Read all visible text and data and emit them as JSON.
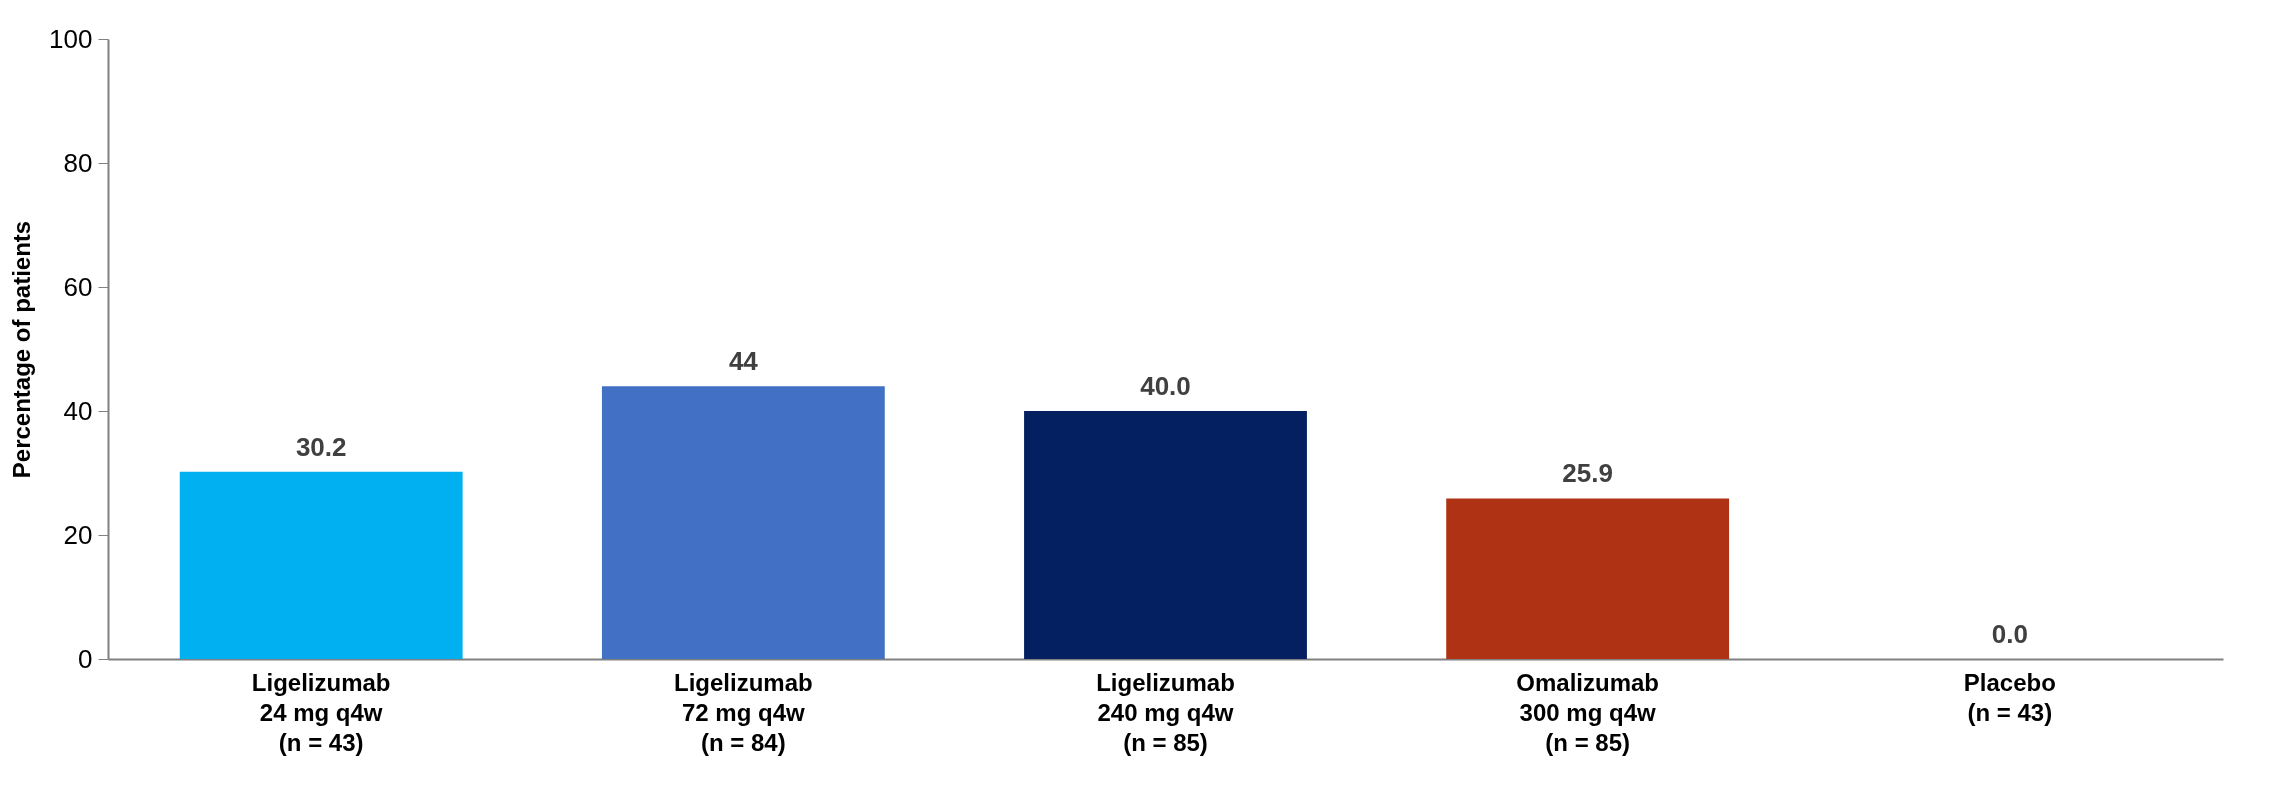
{
  "chart_data": {
    "type": "bar",
    "ylabel": "Percentage of patients",
    "categories": [
      "Ligelizumab\n24 mg q4w\n(n = 43)",
      "Ligelizumab\n72 mg q4w\n(n = 84)",
      "Ligelizumab\n240 mg q4w\n(n = 85)",
      "Omalizumab\n300 mg q4w\n(n = 85)",
      "Placebo\n(n = 43)"
    ],
    "values": [
      30.2,
      44,
      40.0,
      25.9,
      0.0
    ],
    "value_labels": [
      "30.2",
      "44",
      "40.0",
      "25.9",
      "0.0"
    ],
    "colors": [
      "#00b0f0",
      "#4270c4",
      "#042060",
      "#b03214",
      "#7f7f7f"
    ],
    "ylim": [
      0,
      100
    ],
    "yticks": [
      0,
      20,
      40,
      60,
      80,
      100
    ],
    "grid": false,
    "legend": false
  }
}
